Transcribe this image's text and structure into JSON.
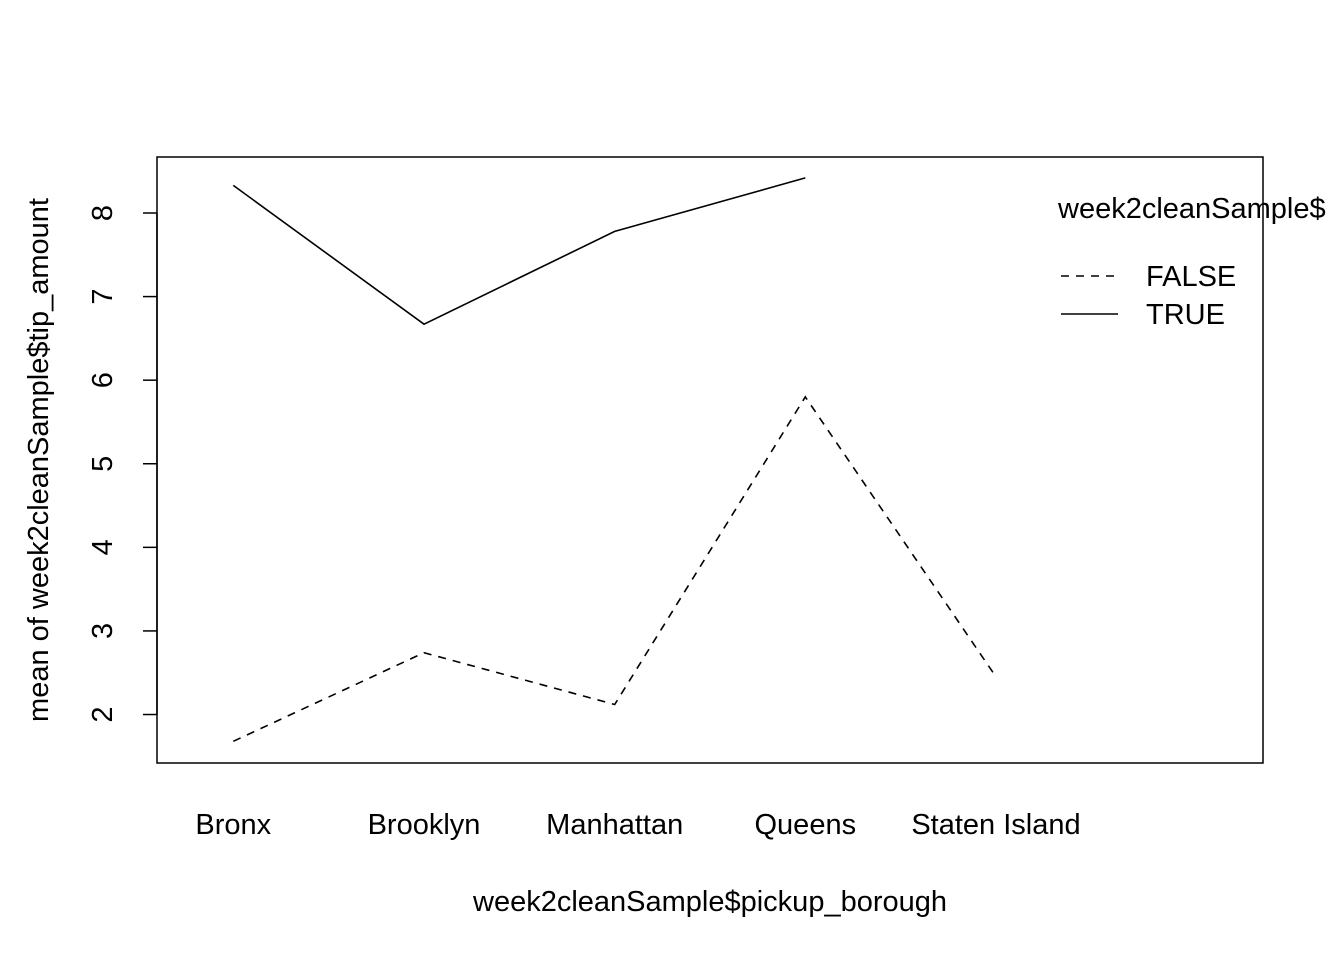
{
  "chart_data": {
    "type": "line",
    "title": "",
    "xlabel": "week2cleanSample$pickup_borough",
    "ylabel": "mean of  week2cleanSample$tip_amount",
    "categories": [
      "Bronx",
      "Brooklyn",
      "Manhattan",
      "Queens",
      "Staten Island"
    ],
    "xlim": [
      0.6,
      6.4
    ],
    "ylim": [
      1.42,
      8.67
    ],
    "yticks": [
      2,
      3,
      4,
      5,
      6,
      7,
      8
    ],
    "grid": false,
    "legend": {
      "title": "week2cleanSample$",
      "placement": "top-right",
      "entries": [
        "FALSE",
        "TRUE"
      ]
    },
    "series": [
      {
        "name": "FALSE",
        "line_style": "dashed",
        "values": [
          1.68,
          2.74,
          2.12,
          5.8,
          2.45
        ]
      },
      {
        "name": "TRUE",
        "line_style": "solid",
        "values": [
          8.33,
          6.67,
          7.78,
          8.42,
          null
        ]
      }
    ],
    "colors": {
      "lines": "#000000",
      "frame": "#000000",
      "background": "#ffffff"
    }
  }
}
